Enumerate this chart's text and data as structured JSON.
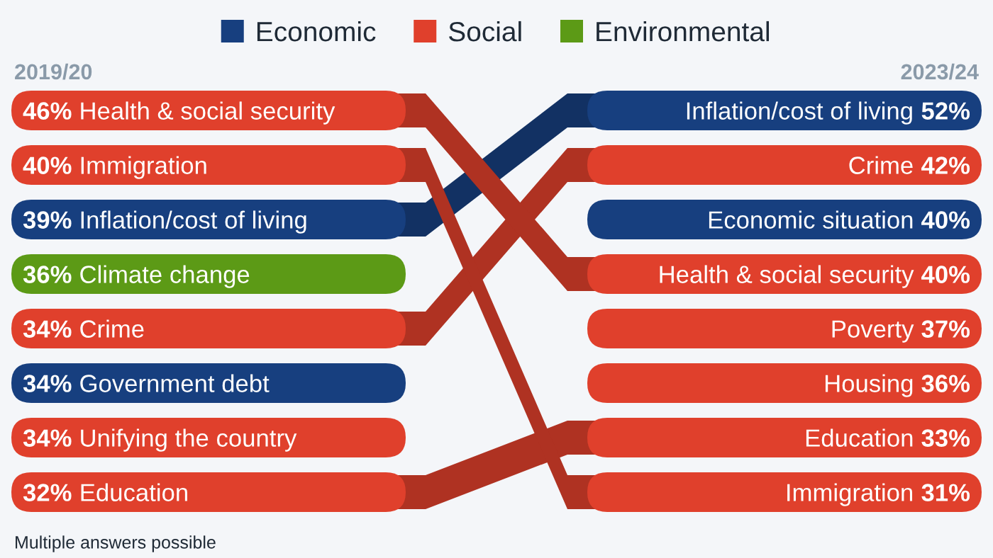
{
  "chart_data": {
    "type": "other",
    "categories": [
      "2019/20",
      "2023/24"
    ],
    "legend": "top",
    "series": [
      {
        "name": "Economic",
        "color": "#173f7f",
        "values": [
          null,
          null
        ]
      },
      {
        "name": "Social",
        "color": "#e0402c",
        "values": [
          null,
          null
        ]
      },
      {
        "name": "Environmental",
        "color": "#5c9a16",
        "values": [
          null,
          null
        ]
      },
      {
        "name": "Inflation/cost of living",
        "color": "#173f7f",
        "values": [
          39,
          52
        ],
        "value_labels": [
          "39%",
          "52%"
        ]
      },
      {
        "name": "Crime",
        "color": "#e0402c",
        "values": [
          34,
          42
        ],
        "value_labels": [
          "34%",
          "42%"
        ]
      },
      {
        "name": "Economic situation",
        "color": "#173f7f",
        "values": [
          null,
          40
        ],
        "value_labels": [
          null,
          "40%"
        ]
      },
      {
        "name": "Health & social security",
        "color": "#e0402c",
        "values": [
          46,
          40
        ],
        "value_labels": [
          "46%",
          "40%"
        ]
      },
      {
        "name": "Poverty",
        "color": "#e0402c",
        "values": [
          null,
          37
        ],
        "value_labels": [
          null,
          "37%"
        ]
      },
      {
        "name": "Housing",
        "color": "#e0402c",
        "values": [
          null,
          36
        ],
        "value_labels": [
          null,
          "36%"
        ]
      },
      {
        "name": "Education",
        "color": "#e0402c",
        "values": [
          32,
          33
        ],
        "value_labels": [
          "32%",
          "33%"
        ]
      },
      {
        "name": "Immigration",
        "color": "#e0402c",
        "values": [
          40,
          31
        ],
        "value_labels": [
          "40%",
          "31%"
        ]
      },
      {
        "name": "Climate change",
        "color": "#5c9a16",
        "values": [
          36,
          null
        ],
        "value_labels": [
          "36%",
          null
        ]
      },
      {
        "name": "Government debt",
        "color": "#173f7f",
        "values": [
          34,
          null
        ],
        "value_labels": [
          "34%",
          null
        ]
      },
      {
        "name": "Unifying the country",
        "color": "#e0402c",
        "values": [
          34,
          null
        ],
        "value_labels": [
          "34%",
          null
        ]
      }
    ],
    "annotations": [
      "Multiple answers possible"
    ]
  }
}
